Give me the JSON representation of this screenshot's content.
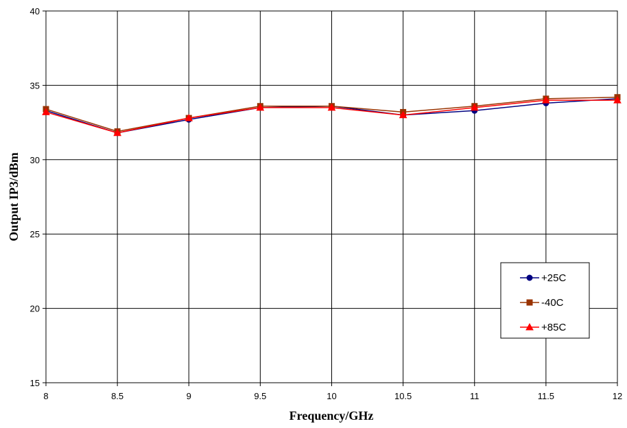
{
  "chart_data": {
    "type": "line",
    "title": "",
    "xlabel": "Frequency/GHz",
    "ylabel": "Output IP3/dBm",
    "x": [
      8,
      8.5,
      9,
      9.5,
      10,
      10.5,
      11,
      11.5,
      12
    ],
    "xlim": [
      8,
      12
    ],
    "ylim": [
      15,
      40
    ],
    "x_ticks": [
      "8",
      "8.5",
      "9",
      "9.5",
      "10",
      "10.5",
      "11",
      "11.5",
      "12"
    ],
    "y_ticks": [
      "15",
      "20",
      "25",
      "30",
      "35",
      "40"
    ],
    "grid": true,
    "legend_position": "bottom-right",
    "series": [
      {
        "name": "+25C",
        "color": "#000080",
        "marker": "circle",
        "values": [
          33.3,
          31.8,
          32.7,
          33.5,
          33.6,
          33.0,
          33.3,
          33.8,
          34.1
        ]
      },
      {
        "name": "-40C",
        "color": "#993300",
        "marker": "square",
        "values": [
          33.4,
          31.9,
          32.8,
          33.6,
          33.6,
          33.2,
          33.6,
          34.1,
          34.2
        ]
      },
      {
        "name": "+85C",
        "color": "#ff0000",
        "marker": "triangle",
        "values": [
          33.2,
          31.8,
          32.8,
          33.5,
          33.5,
          33.0,
          33.5,
          34.0,
          34.0
        ]
      }
    ]
  }
}
